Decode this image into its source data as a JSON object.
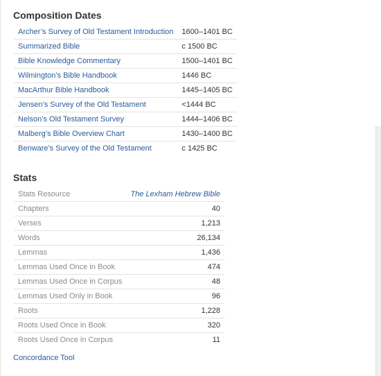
{
  "composition_dates": {
    "title": "Composition Dates",
    "rows": [
      {
        "resource": "Archer’s Survey of Old Testament Introduction",
        "date": "1600–1401 BC"
      },
      {
        "resource": "Summarized Bible",
        "date": "c 1500 BC"
      },
      {
        "resource": "Bible Knowledge Commentary",
        "date": "1500–1401 BC"
      },
      {
        "resource": "Wilmington’s Bible Handbook",
        "date": "1446 BC"
      },
      {
        "resource": "MacArthur Bible Handbook",
        "date": "1445–1405 BC"
      },
      {
        "resource": "Jensen’s Survey of the Old Testament",
        "date": "<1444 BC"
      },
      {
        "resource": "Nelson’s Old Testament Survey",
        "date": "1444–1406 BC"
      },
      {
        "resource": "Malberg’s Bible Overview Chart",
        "date": "1430–1400 BC"
      },
      {
        "resource": "Benware’s Survey of the Old Testament",
        "date": "c 1425 BC"
      }
    ]
  },
  "stats": {
    "title": "Stats",
    "resource_label": "Stats Resource",
    "resource_value": "The Lexham Hebrew Bible",
    "rows": [
      {
        "label": "Chapters",
        "value": "40"
      },
      {
        "label": "Verses",
        "value": "1,213"
      },
      {
        "label": "Words",
        "value": "26,134"
      },
      {
        "label": "Lemmas",
        "value": "1,436"
      },
      {
        "label": "Lemmas Used Once in Book",
        "value": "474"
      },
      {
        "label": "Lemmas Used Once in Corpus",
        "value": "48"
      },
      {
        "label": "Lemmas Used Only in Book",
        "value": "96"
      },
      {
        "label": "Roots",
        "value": "1,228"
      },
      {
        "label": "Roots Used Once in Book",
        "value": "320"
      },
      {
        "label": "Roots Used Once in Corpus",
        "value": "11"
      }
    ]
  },
  "concordance_link": "Concordance Tool",
  "colors": {
    "link": "#2a5b9a",
    "heading": "#333333",
    "muted_label": "#8a8a8a",
    "divider": "#e3e3e3"
  }
}
